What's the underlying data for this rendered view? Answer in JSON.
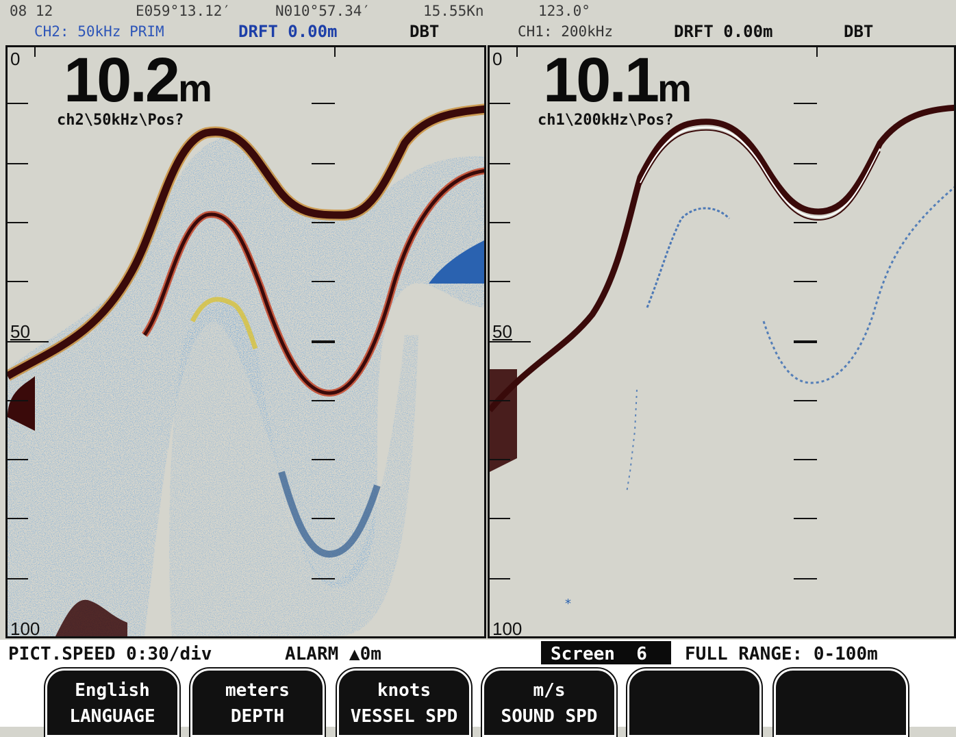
{
  "header": {
    "time": "08 12",
    "longitude": "E059°13.12′",
    "latitude": "N010°57.34′",
    "speed": "15.55Kn",
    "heading": "123.0°"
  },
  "left_channel": {
    "channel_freq": "CH2: 50kHz PRIM",
    "draft": "DRFT 0.00m",
    "mode": "DBT",
    "depth_value": "10.2",
    "depth_unit": "m",
    "source_label": "ch2\\50kHz\\Pos?",
    "scale_top": "0",
    "scale_mid": "50",
    "scale_bottom": "100"
  },
  "right_channel": {
    "channel_freq": "CH1: 200kHz",
    "draft": "DRFT 0.00m",
    "mode": "DBT",
    "depth_value": "10.1",
    "depth_unit": "m",
    "source_label": "ch1\\200kHz\\Pos?",
    "scale_top": "0",
    "scale_mid": "50",
    "scale_bottom": "100"
  },
  "status": {
    "pict_speed": "PICT.SPEED 0:30/div",
    "alarm": "ALARM ▲0m",
    "screen_label": "Screen  6",
    "full_range": "FULL RANGE: 0-100m"
  },
  "softkeys": [
    {
      "value": "English",
      "name": "LANGUAGE"
    },
    {
      "value": "meters",
      "name": "DEPTH"
    },
    {
      "value": "knots",
      "name": "VESSEL SPD"
    },
    {
      "value": "m/s",
      "name": "SOUND SPD"
    },
    {
      "value": "",
      "name": ""
    },
    {
      "value": "",
      "name": ""
    }
  ],
  "colors": {
    "background": "#d5d5cd",
    "bottom_echo": "#3a0a0a",
    "echo_red": "#c43a1a",
    "echo_yellow": "#d8c23a",
    "echo_green": "#3a9a4a",
    "echo_blue": "#2a62b0",
    "label_blue": "#2d55b8"
  }
}
